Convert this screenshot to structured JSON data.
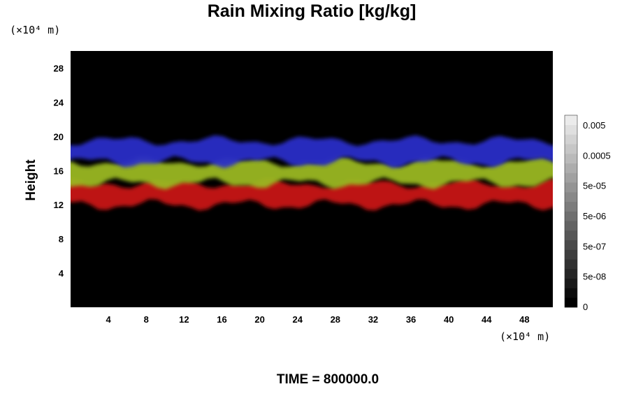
{
  "chart_data": {
    "type": "heatmap",
    "title": "Rain Mixing Ratio [kg/kg]",
    "xlabel": "",
    "ylabel": "Height",
    "x_unit": "(×10⁴ m)",
    "y_unit": "(×10⁴ m)",
    "xlim": [
      0,
      51
    ],
    "ylim": [
      0,
      30
    ],
    "x_ticks": [
      4,
      8,
      12,
      16,
      20,
      24,
      28,
      32,
      36,
      40,
      44,
      48
    ],
    "y_ticks": [
      4,
      8,
      12,
      16,
      20,
      24,
      28
    ],
    "background_color": "#000000",
    "bands": [
      {
        "color": "#c81414",
        "y_bottom": 12.0,
        "y_top": 14.5
      },
      {
        "color": "#9ab820",
        "y_bottom": 14.5,
        "y_top": 17.0
      },
      {
        "color": "#2a2ec8",
        "y_bottom": 17.0,
        "y_top": 19.5
      }
    ],
    "colorbar": {
      "tick_labels": [
        "0.005",
        "0.0005",
        "5e-05",
        "5e-06",
        "5e-07",
        "5e-08",
        "0"
      ],
      "levels": 20
    },
    "time_label": "TIME = 800000.0"
  }
}
